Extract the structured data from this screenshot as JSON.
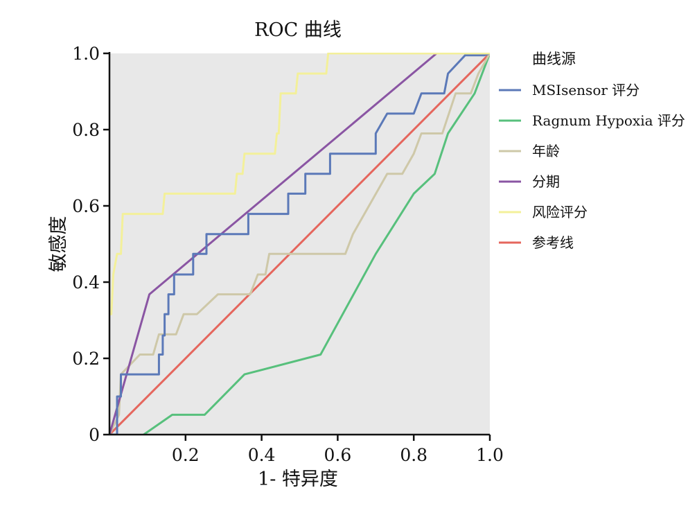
{
  "chart_data": {
    "type": "line",
    "title": "ROC 曲线",
    "xlabel": "1- 特异度",
    "ylabel": "敏感度",
    "xlim": [
      0,
      1
    ],
    "ylim": [
      0,
      1
    ],
    "x_ticks": [
      {
        "value": 0.2,
        "label": "0.2"
      },
      {
        "value": 0.4,
        "label": "0.4"
      },
      {
        "value": 0.6,
        "label": "0.6"
      },
      {
        "value": 0.8,
        "label": "0.8"
      },
      {
        "value": 1.0,
        "label": "1.0"
      }
    ],
    "y_ticks": [
      {
        "value": 0,
        "label": "0"
      },
      {
        "value": 0.2,
        "label": "0.2"
      },
      {
        "value": 0.4,
        "label": "0.4"
      },
      {
        "value": 0.6,
        "label": "0.6"
      },
      {
        "value": 0.8,
        "label": "0.8"
      },
      {
        "value": 1.0,
        "label": "1.0"
      }
    ],
    "grid": false,
    "background": "#e8e8e8",
    "legend_title": "曲线源",
    "legend_position": "right",
    "series": [
      {
        "name": "MSIsensor 评分",
        "color": "#5b79b8",
        "points": [
          [
            0,
            0
          ],
          [
            0.02,
            0
          ],
          [
            0.02,
            0.1
          ],
          [
            0.03,
            0.1
          ],
          [
            0.03,
            0.158
          ],
          [
            0.13,
            0.158
          ],
          [
            0.13,
            0.21
          ],
          [
            0.14,
            0.21
          ],
          [
            0.14,
            0.26
          ],
          [
            0.145,
            0.26
          ],
          [
            0.145,
            0.316
          ],
          [
            0.155,
            0.316
          ],
          [
            0.155,
            0.368
          ],
          [
            0.17,
            0.368
          ],
          [
            0.17,
            0.42
          ],
          [
            0.22,
            0.42
          ],
          [
            0.22,
            0.474
          ],
          [
            0.255,
            0.474
          ],
          [
            0.255,
            0.526
          ],
          [
            0.365,
            0.526
          ],
          [
            0.365,
            0.579
          ],
          [
            0.47,
            0.579
          ],
          [
            0.47,
            0.632
          ],
          [
            0.515,
            0.632
          ],
          [
            0.515,
            0.684
          ],
          [
            0.58,
            0.684
          ],
          [
            0.58,
            0.737
          ],
          [
            0.7,
            0.737
          ],
          [
            0.7,
            0.79
          ],
          [
            0.73,
            0.842
          ],
          [
            0.8,
            0.842
          ],
          [
            0.82,
            0.895
          ],
          [
            0.88,
            0.895
          ],
          [
            0.89,
            0.947
          ],
          [
            0.935,
            0.995
          ],
          [
            0.985,
            0.995
          ],
          [
            1.0,
            1.0
          ]
        ]
      },
      {
        "name": "Ragnum Hypoxia 评分",
        "color": "#57c07c",
        "points": [
          [
            0.09,
            0
          ],
          [
            0.165,
            0.052
          ],
          [
            0.25,
            0.052
          ],
          [
            0.355,
            0.158
          ],
          [
            0.555,
            0.21
          ],
          [
            0.7,
            0.474
          ],
          [
            0.8,
            0.632
          ],
          [
            0.855,
            0.684
          ],
          [
            0.89,
            0.79
          ],
          [
            0.96,
            0.895
          ],
          [
            1.0,
            1.0
          ]
        ]
      },
      {
        "name": "年龄",
        "color": "#cec8a8",
        "points": [
          [
            0,
            0
          ],
          [
            0.025,
            0.052
          ],
          [
            0.03,
            0.158
          ],
          [
            0.08,
            0.21
          ],
          [
            0.115,
            0.21
          ],
          [
            0.13,
            0.263
          ],
          [
            0.155,
            0.263
          ],
          [
            0.175,
            0.263
          ],
          [
            0.195,
            0.316
          ],
          [
            0.23,
            0.316
          ],
          [
            0.285,
            0.368
          ],
          [
            0.37,
            0.368
          ],
          [
            0.39,
            0.42
          ],
          [
            0.41,
            0.42
          ],
          [
            0.42,
            0.474
          ],
          [
            0.62,
            0.474
          ],
          [
            0.64,
            0.526
          ],
          [
            0.73,
            0.684
          ],
          [
            0.77,
            0.684
          ],
          [
            0.8,
            0.737
          ],
          [
            0.82,
            0.79
          ],
          [
            0.875,
            0.79
          ],
          [
            0.91,
            0.895
          ],
          [
            0.95,
            0.895
          ],
          [
            0.97,
            0.947
          ],
          [
            1.0,
            1.0
          ]
        ]
      },
      {
        "name": "分期",
        "color": "#8a55a3",
        "points": [
          [
            0,
            0
          ],
          [
            0.105,
            0.368
          ],
          [
            0.86,
            1.0
          ]
        ]
      },
      {
        "name": "风险评分",
        "color": "#f3f09a",
        "points": [
          [
            0,
            0.316
          ],
          [
            0.005,
            0.316
          ],
          [
            0.01,
            0.42
          ],
          [
            0.02,
            0.474
          ],
          [
            0.03,
            0.474
          ],
          [
            0.035,
            0.579
          ],
          [
            0.14,
            0.579
          ],
          [
            0.145,
            0.632
          ],
          [
            0.33,
            0.632
          ],
          [
            0.335,
            0.684
          ],
          [
            0.35,
            0.684
          ],
          [
            0.355,
            0.737
          ],
          [
            0.435,
            0.737
          ],
          [
            0.44,
            0.79
          ],
          [
            0.445,
            0.79
          ],
          [
            0.45,
            0.895
          ],
          [
            0.49,
            0.895
          ],
          [
            0.495,
            0.947
          ],
          [
            0.57,
            0.947
          ],
          [
            0.575,
            1.0
          ],
          [
            1.0,
            1.0
          ]
        ]
      },
      {
        "name": "参考线",
        "color": "#e5665d",
        "points": [
          [
            0,
            0
          ],
          [
            1,
            1
          ]
        ]
      }
    ]
  }
}
